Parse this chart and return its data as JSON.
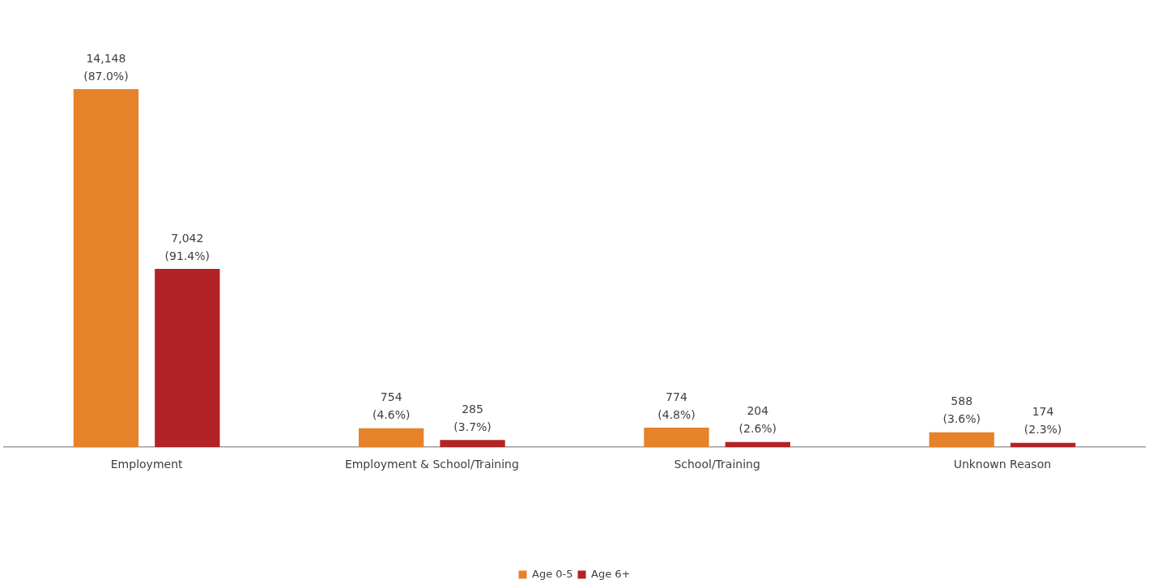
{
  "chart_data": {
    "type": "bar",
    "categories": [
      "Employment",
      "Employment & School/Training",
      "School/Training",
      "Unknown Reason"
    ],
    "series": [
      {
        "name": "Age 0-5",
        "color": "#e5822a",
        "values": [
          14148,
          754,
          774,
          588
        ],
        "value_labels": [
          "14,148\n(87.0%)",
          "754\n(4.6%)",
          "774\n(4.8%)",
          "588\n(3.6%)"
        ]
      },
      {
        "name": "Age 6+",
        "color": "#b22326",
        "values": [
          7042,
          285,
          204,
          174
        ],
        "value_labels": [
          "7,042\n(91.4%)",
          "285\n(3.7%)",
          "204\n(2.6%)",
          "174\n(2.3%)"
        ]
      }
    ],
    "grid": false,
    "legend": "bottom",
    "tick_labels": "x"
  }
}
